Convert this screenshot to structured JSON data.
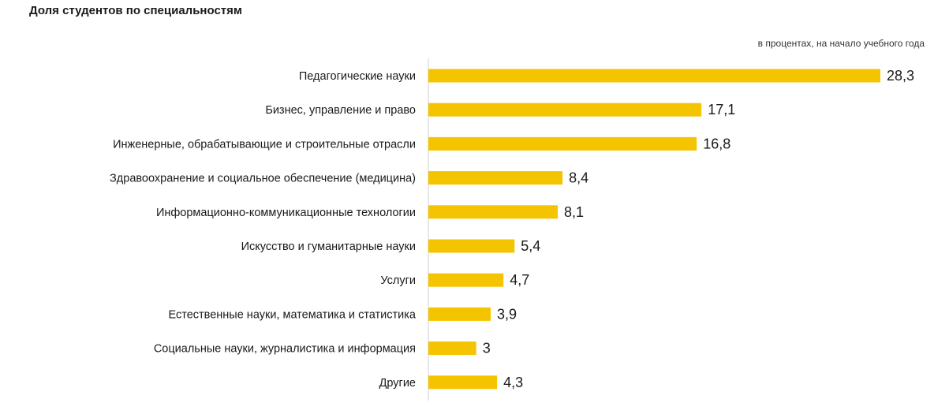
{
  "chart_data": {
    "type": "bar",
    "orientation": "horizontal",
    "title": "Доля студентов по специальностям",
    "subtitle": "в процентах, на начало учебного года",
    "categories": [
      "Педагогические науки",
      "Бизнес, управление и право",
      "Инженерные, обрабатывающие и строительные отрасли",
      "Здравоохранение и социальное обеспечение (медицина)",
      "Информационно-коммуникационные технологии",
      "Искусство и гуманитарные науки",
      "Услуги",
      "Естественные науки, математика и статистика",
      "Социальные науки, журналистика и информация",
      "Другие"
    ],
    "values": [
      28.3,
      17.1,
      16.8,
      8.4,
      8.1,
      5.4,
      4.7,
      3.9,
      3,
      4.3
    ],
    "value_labels": [
      "28,3",
      "17,1",
      "16,8",
      "8,4",
      "8,1",
      "5,4",
      "4,7",
      "3,9",
      "3",
      "4,3"
    ],
    "xlim": [
      0,
      28.3
    ],
    "grid": false,
    "legend": "none",
    "bar_color": "#F5C400",
    "axis_color": "#d0d0d0"
  }
}
